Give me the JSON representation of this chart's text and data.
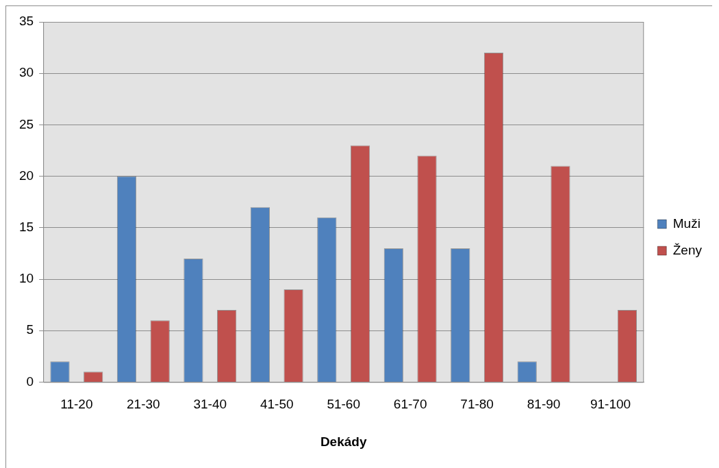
{
  "chart_data": {
    "type": "bar",
    "xlabel": "Dekády",
    "categories": [
      "11-20",
      "21-30",
      "31-40",
      "41-50",
      "51-60",
      "61-70",
      "71-80",
      "81-90",
      "91-100"
    ],
    "series": [
      {
        "name": "Muži",
        "color": "#4f81bd",
        "values": [
          2,
          20,
          12,
          17,
          16,
          13,
          13,
          2,
          0
        ]
      },
      {
        "name": "Ženy",
        "color": "#c0504d",
        "values": [
          1,
          6,
          7,
          9,
          23,
          22,
          32,
          21,
          7
        ]
      }
    ],
    "ylim": [
      0,
      35
    ],
    "yticks": [
      0,
      5,
      10,
      15,
      20,
      25,
      30,
      35
    ],
    "grid": "y",
    "legend": "right"
  }
}
